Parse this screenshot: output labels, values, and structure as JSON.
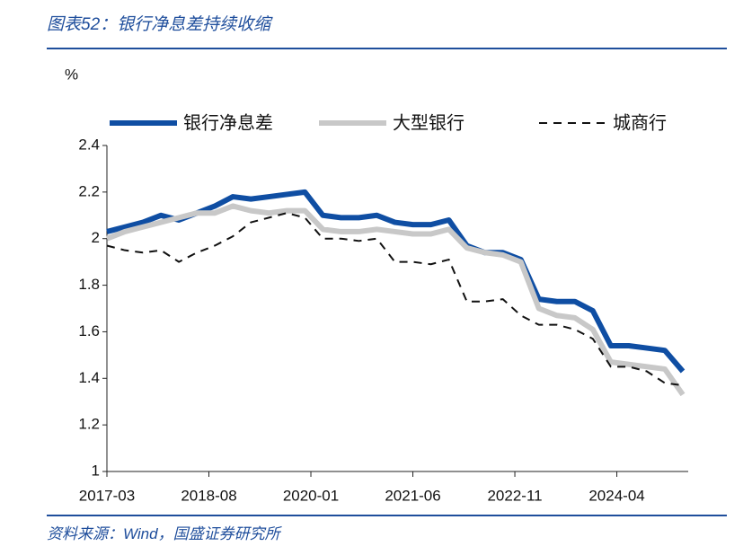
{
  "header": {
    "title": "图表52：银行净息差持续收缩"
  },
  "chart_data": {
    "type": "line",
    "y_unit": "%",
    "x": [
      "2017-03",
      "2017-06",
      "2017-09",
      "2017-12",
      "2018-03",
      "2018-06",
      "2018-09",
      "2018-12",
      "2019-03",
      "2019-06",
      "2019-09",
      "2019-12",
      "2020-03",
      "2020-06",
      "2020-09",
      "2020-12",
      "2021-03",
      "2021-06",
      "2021-09",
      "2021-12",
      "2022-03",
      "2022-06",
      "2022-09",
      "2022-12",
      "2023-03",
      "2023-06",
      "2023-09",
      "2023-12",
      "2024-03",
      "2024-06",
      "2024-09",
      "2024-12",
      "2025-03"
    ],
    "series": [
      {
        "name": "银行净息差",
        "color": "#0f4ea3",
        "style": "solid",
        "values": [
          2.03,
          2.05,
          2.07,
          2.1,
          2.08,
          2.11,
          2.14,
          2.18,
          2.17,
          2.18,
          2.19,
          2.2,
          2.1,
          2.09,
          2.09,
          2.1,
          2.07,
          2.06,
          2.06,
          2.08,
          1.97,
          1.94,
          1.94,
          1.91,
          1.74,
          1.73,
          1.73,
          1.69,
          1.54,
          1.54,
          1.53,
          1.52,
          1.43
        ]
      },
      {
        "name": "大型银行",
        "color": "#c8c8c8",
        "style": "solid",
        "values": [
          2.0,
          2.03,
          2.05,
          2.07,
          2.09,
          2.11,
          2.11,
          2.14,
          2.12,
          2.11,
          2.12,
          2.12,
          2.04,
          2.03,
          2.03,
          2.04,
          2.03,
          2.02,
          2.02,
          2.04,
          1.96,
          1.94,
          1.93,
          1.9,
          1.7,
          1.67,
          1.66,
          1.61,
          1.47,
          1.46,
          1.45,
          1.44,
          1.33
        ]
      },
      {
        "name": "城商行",
        "color": "#111111",
        "style": "dashed",
        "values": [
          1.97,
          1.95,
          1.94,
          1.95,
          1.9,
          1.94,
          1.97,
          2.01,
          2.07,
          2.09,
          2.11,
          2.09,
          2.0,
          2.0,
          1.99,
          2.0,
          1.9,
          1.9,
          1.89,
          1.91,
          1.73,
          1.73,
          1.74,
          1.67,
          1.63,
          1.63,
          1.61,
          1.57,
          1.45,
          1.45,
          1.43,
          1.38,
          1.37
        ]
      }
    ],
    "xlim": [
      "2017-03",
      "2025-03"
    ],
    "xticks": [
      "2017-03",
      "2018-08",
      "2020-01",
      "2021-06",
      "2022-11",
      "2024-04"
    ],
    "ylim": [
      1,
      2.4
    ],
    "yticks": [
      1,
      1.2,
      1.4,
      1.6,
      1.8,
      2,
      2.2,
      2.4
    ],
    "grid": false
  },
  "footer": {
    "source": "资料来源：Wind，国盛证券研究所"
  }
}
